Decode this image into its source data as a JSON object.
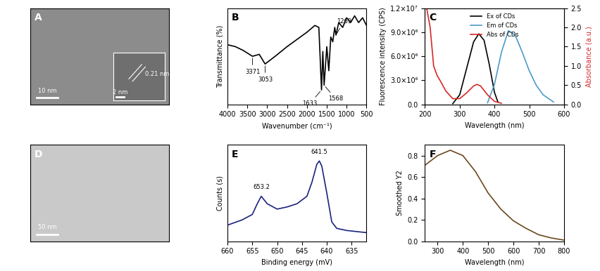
{
  "chart_data": [
    {
      "type": "image",
      "panel_label": "A",
      "color": "#8c8c8c",
      "scale_bar": "10 nm",
      "inset": {
        "scale_bar": "2 nm",
        "annotation": "0.21 nm"
      }
    },
    {
      "type": "line",
      "panel_label": "B",
      "x_label": "Wavenumber (cm⁻¹)",
      "y_label": "Transmittance (%)",
      "xlim": [
        4000,
        500
      ],
      "xticks": [
        4000,
        3500,
        3000,
        2500,
        2000,
        1500,
        1000,
        500
      ],
      "ylim": [
        0,
        1
      ],
      "tick_labels": "x",
      "series": [
        {
          "color": "#000000",
          "x": [
            4000,
            3800,
            3600,
            3371,
            3200,
            3053,
            2800,
            2500,
            2000,
            1800,
            1700,
            1633,
            1600,
            1568,
            1500,
            1450,
            1400,
            1350,
            1300,
            1269,
            1200,
            1100,
            1000,
            900,
            800,
            700,
            600,
            500
          ],
          "values": [
            0.62,
            0.6,
            0.56,
            0.5,
            0.52,
            0.42,
            0.5,
            0.6,
            0.75,
            0.82,
            0.8,
            0.15,
            0.55,
            0.2,
            0.6,
            0.35,
            0.7,
            0.65,
            0.8,
            0.72,
            0.85,
            0.8,
            0.9,
            0.85,
            0.92,
            0.85,
            0.9,
            0.82
          ]
        }
      ],
      "annotations": [
        {
          "text": "3371",
          "x": 3371,
          "y": 0.5
        },
        {
          "text": "3053",
          "x": 3053,
          "y": 0.42
        },
        {
          "text": "1633",
          "x": 1633,
          "y": 0.15
        },
        {
          "text": "1568",
          "x": 1568,
          "y": 0.2
        },
        {
          "text": "1269",
          "x": 1269,
          "y": 0.72
        }
      ]
    },
    {
      "type": "line",
      "panel_label": "C",
      "x_label": "Wavelength (nm)",
      "y_label": "Fluorescence intensity (CPS)",
      "y2_label": "Absorbance (a.u.)",
      "xlim": [
        200,
        600
      ],
      "xticks": [
        200,
        300,
        400,
        500,
        600
      ],
      "ylim": [
        0,
        12000000
      ],
      "yticks": [
        {
          "value": 0,
          "label": "0.0"
        },
        {
          "value": 3000000,
          "label": "3.0×10⁶"
        },
        {
          "value": 6000000,
          "label": "6.0×10⁶"
        },
        {
          "value": 9000000,
          "label": "9.0×10⁶"
        },
        {
          "value": 12000000,
          "label": "1.2×10⁷"
        }
      ],
      "y2lim": [
        0,
        2.5
      ],
      "y2ticks": [
        {
          "value": 0,
          "label": "0.0"
        },
        {
          "value": 0.5,
          "label": "0.5"
        },
        {
          "value": 1.0,
          "label": "1.0"
        },
        {
          "value": 1.5,
          "label": "1.5"
        },
        {
          "value": 2.0,
          "label": "2.0"
        },
        {
          "value": 2.5,
          "label": "2.5"
        }
      ],
      "legend": "upper center",
      "series": [
        {
          "name": "Ex of CDs",
          "color": "#000000",
          "x": [
            280,
            300,
            320,
            340,
            355,
            370,
            385,
            400,
            410
          ],
          "values": [
            100000,
            1200000,
            4500000,
            7800000,
            8800000,
            8000000,
            5000000,
            1500000,
            300000
          ]
        },
        {
          "name": "Em of CDs",
          "color": "#4a9bc9",
          "x": [
            380,
            400,
            420,
            440,
            460,
            480,
            500,
            520,
            540,
            570
          ],
          "values": [
            200000,
            2500000,
            6500000,
            9200000,
            8600000,
            6500000,
            4200000,
            2400000,
            1200000,
            300000
          ]
        },
        {
          "name": "Abs of CDs",
          "color": "#d62728",
          "axis": "y2",
          "x": [
            205,
            215,
            225,
            235,
            245,
            260,
            280,
            300,
            320,
            340,
            350,
            360,
            380,
            400,
            420
          ],
          "values": [
            2.5,
            2.0,
            1.0,
            0.75,
            0.6,
            0.35,
            0.15,
            0.15,
            0.3,
            0.48,
            0.52,
            0.48,
            0.25,
            0.08,
            0.03
          ]
        }
      ]
    },
    {
      "type": "image",
      "panel_label": "D",
      "color": "#c9c9c9",
      "scale_bar": "50 nm"
    },
    {
      "type": "line",
      "panel_label": "E",
      "x_label": "Binding energy (mV)",
      "y_label": "Counts (s)",
      "xlim": [
        660,
        632
      ],
      "xticks": [
        660,
        655,
        650,
        645,
        640,
        635
      ],
      "ylim": [
        0.2,
        1.1
      ],
      "tick_labels": "x",
      "series": [
        {
          "color": "#1a237e",
          "x": [
            660,
            657,
            655,
            654,
            653.2,
            652,
            650,
            648,
            646,
            644,
            643,
            642,
            641.5,
            641,
            640,
            639,
            638,
            636,
            632
          ],
          "values": [
            0.35,
            0.4,
            0.45,
            0.55,
            0.62,
            0.55,
            0.5,
            0.52,
            0.55,
            0.62,
            0.75,
            0.92,
            0.95,
            0.9,
            0.65,
            0.38,
            0.32,
            0.3,
            0.28
          ]
        }
      ],
      "annotations": [
        {
          "text": "653.2",
          "x": 653.2,
          "y": 0.62
        },
        {
          "text": "641.5",
          "x": 641.5,
          "y": 0.95
        }
      ]
    },
    {
      "type": "line",
      "panel_label": "F",
      "x_label": "Wavelength (nm)",
      "y_label": "Smoothed Y2",
      "xlim": [
        250,
        800
      ],
      "xticks": [
        300,
        400,
        500,
        600,
        700,
        800
      ],
      "ylim": [
        0,
        0.9
      ],
      "yticks": [
        {
          "value": 0,
          "label": "0.0"
        },
        {
          "value": 0.2,
          "label": "0.2"
        },
        {
          "value": 0.4,
          "label": "0.4"
        },
        {
          "value": 0.6,
          "label": "0.6"
        },
        {
          "value": 0.8,
          "label": "0.8"
        }
      ],
      "series": [
        {
          "color": "#6b4a1e",
          "x": [
            250,
            300,
            350,
            400,
            450,
            500,
            550,
            600,
            650,
            700,
            750,
            800
          ],
          "values": [
            0.71,
            0.8,
            0.85,
            0.8,
            0.65,
            0.45,
            0.3,
            0.19,
            0.12,
            0.06,
            0.03,
            0.01
          ]
        }
      ]
    }
  ]
}
